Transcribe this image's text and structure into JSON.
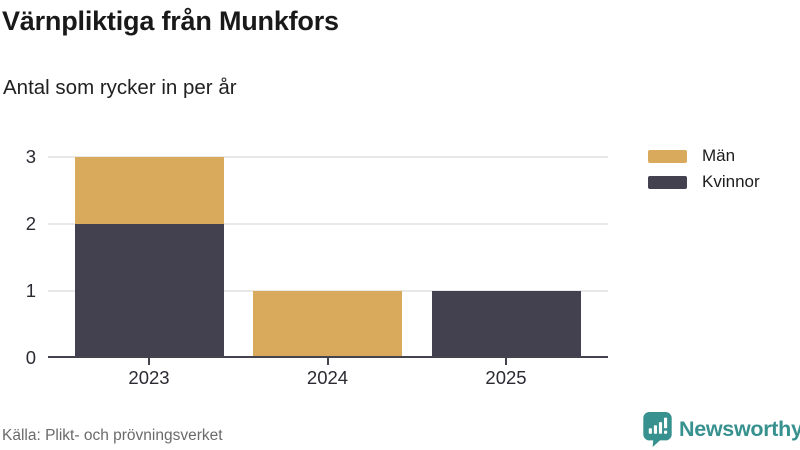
{
  "chart_data": {
    "type": "bar",
    "stacked": true,
    "title": "Värnpliktiga från Munkfors",
    "subtitle": "Antal som rycker in per år",
    "categories": [
      "2023",
      "2024",
      "2025"
    ],
    "series": [
      {
        "name": "Män",
        "color": "#d9aa5c",
        "values": [
          1,
          1,
          0
        ]
      },
      {
        "name": "Kvinnor",
        "color": "#434150",
        "values": [
          2,
          0,
          1
        ]
      }
    ],
    "stack_order_bottom_to_top": [
      "Kvinnor",
      "Män"
    ],
    "totals": [
      3,
      1,
      1
    ],
    "ylim": [
      0,
      3
    ],
    "yticks": [
      0,
      1,
      2,
      3
    ],
    "grid": true,
    "legend_position": "right-top"
  },
  "footer": {
    "source": "Källa: Plikt- och prövningsverket",
    "brand_wordmark": "Newsworthy"
  },
  "colors": {
    "axis": "#45444e",
    "grid": "#e8e8e8",
    "title_text": "#191919",
    "tick_text": "#2b2a33",
    "muted_text": "#6a6a6a",
    "brand_teal": "#37918f"
  }
}
